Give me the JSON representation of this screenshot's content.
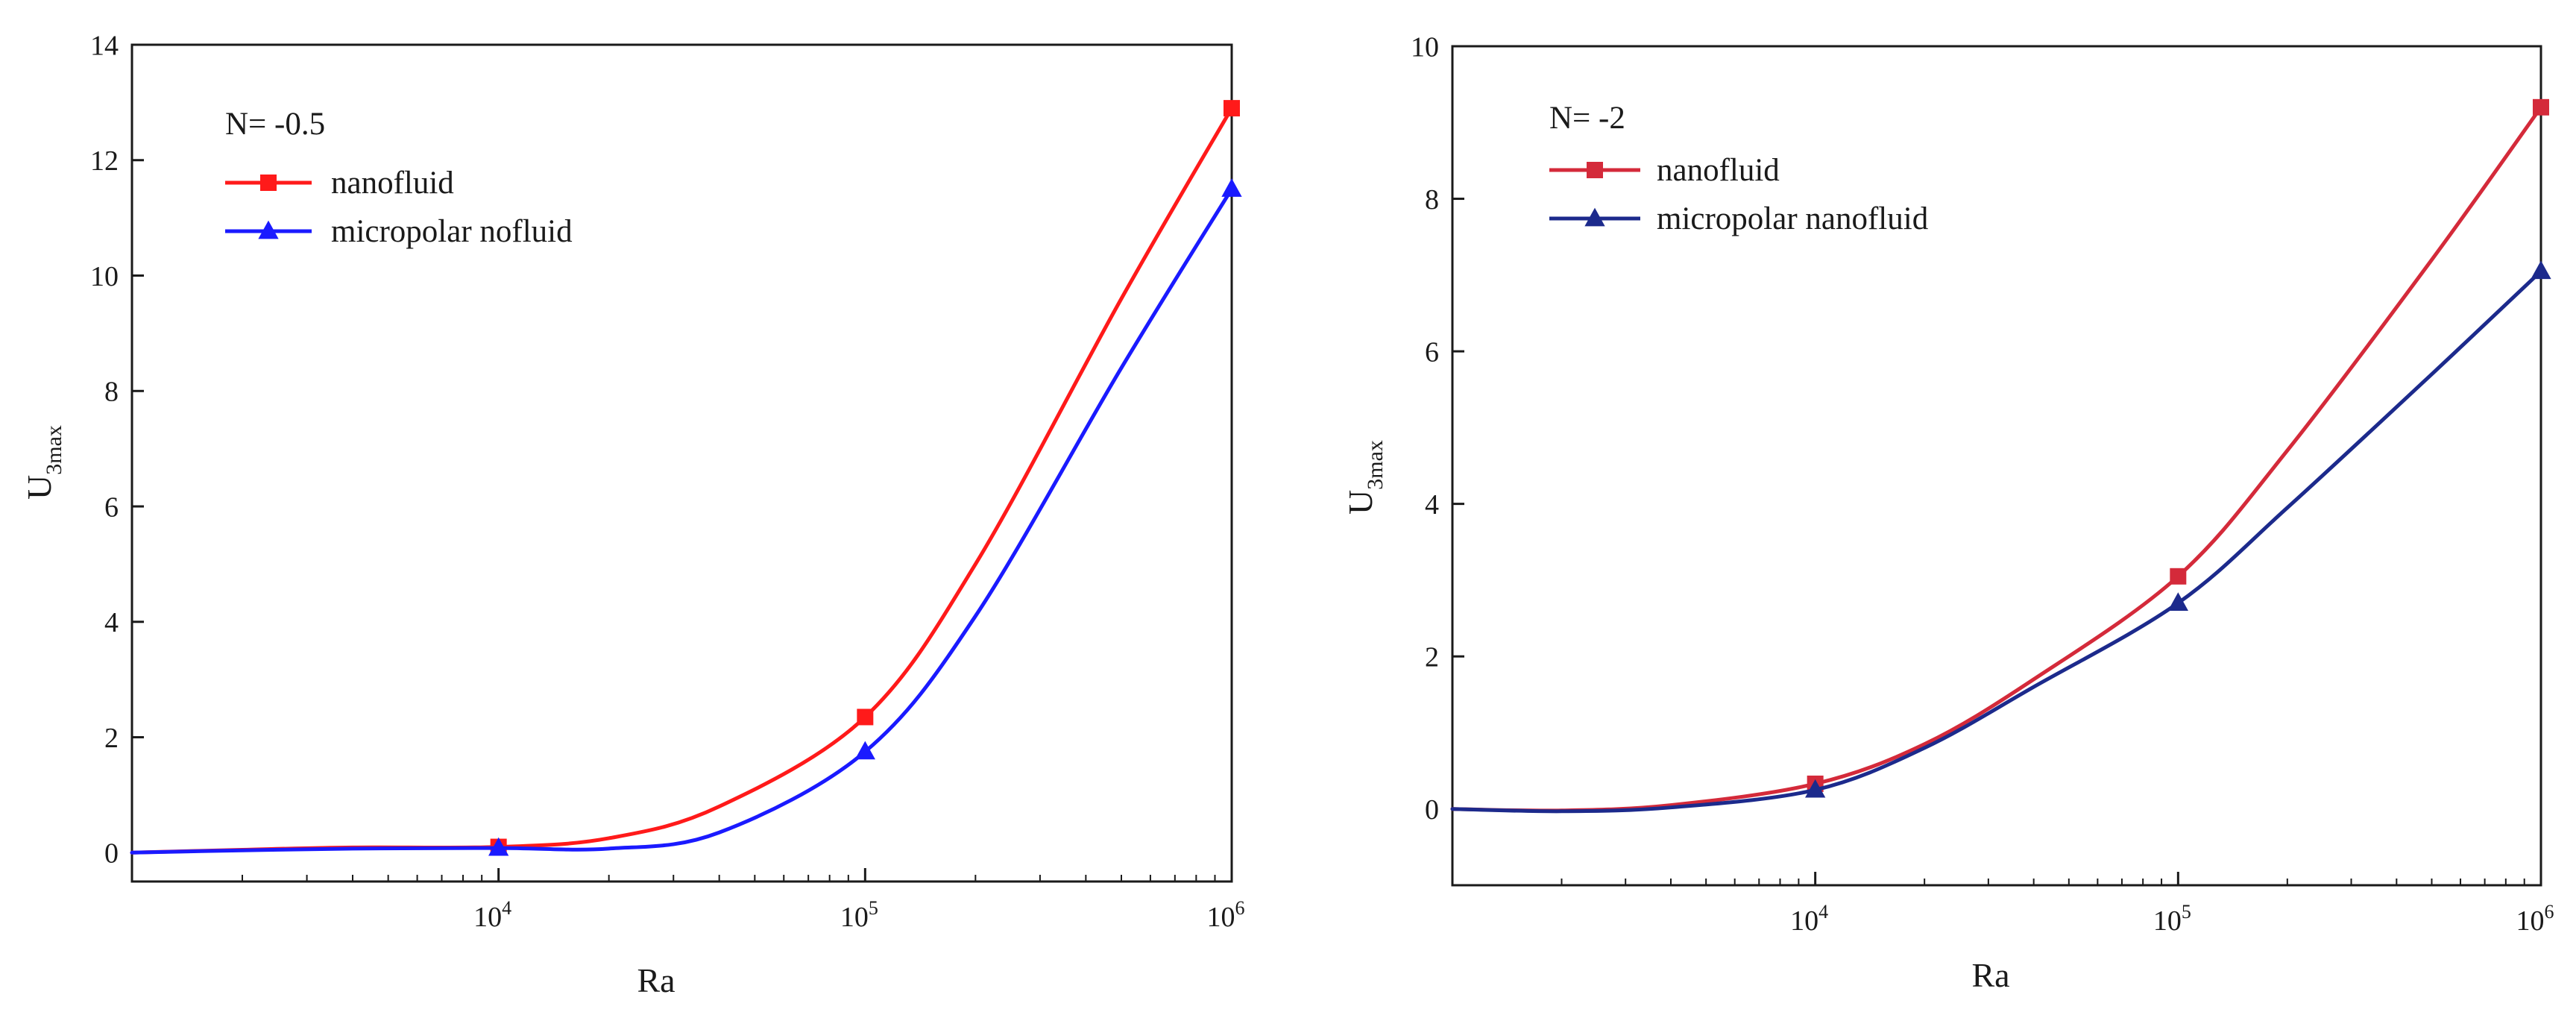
{
  "chart_data": [
    {
      "type": "line",
      "annotation": "N= -0.5",
      "xlabel": "Ra",
      "ylabel": "U",
      "ylabel_sub": "3max",
      "xscale": "log",
      "xlim": [
        1000,
        1000000
      ],
      "ylim": [
        -0.5,
        14
      ],
      "yticks": [
        0,
        2,
        4,
        6,
        8,
        10,
        12,
        14
      ],
      "xticks": [
        {
          "base": "10",
          "exp": "4",
          "value": 10000
        },
        {
          "base": "10",
          "exp": "5",
          "value": 100000
        },
        {
          "base": "10",
          "exp": "6",
          "value": 1000000
        }
      ],
      "series": [
        {
          "name": "nanofluid",
          "color": "#ff1a1a",
          "marker": "square",
          "x": [
            1000,
            2000,
            4000,
            10000,
            20000,
            40000,
            100000,
            200000,
            500000,
            1000000
          ],
          "y": [
            0.0,
            0.05,
            0.09,
            0.1,
            0.25,
            0.8,
            2.35,
            5.0,
            9.6,
            12.9
          ],
          "marker_x": [
            10000,
            100000,
            1000000
          ],
          "marker_y": [
            0.1,
            2.35,
            12.9
          ]
        },
        {
          "name": "micropolar nofluid",
          "color": "#1a1aff",
          "marker": "triangle",
          "x": [
            1000,
            2000,
            4000,
            10000,
            20000,
            40000,
            100000,
            200000,
            500000,
            1000000
          ],
          "y": [
            0.0,
            0.04,
            0.07,
            0.08,
            0.07,
            0.35,
            1.75,
            4.1,
            8.4,
            11.5
          ],
          "marker_x": [
            10000,
            100000,
            1000000
          ],
          "marker_y": [
            0.08,
            1.75,
            11.5
          ]
        }
      ]
    },
    {
      "type": "line",
      "annotation": "N= -2",
      "xlabel": "Ra",
      "ylabel": "U",
      "ylabel_sub": "3max",
      "xscale": "log",
      "xlim": [
        1000,
        1000000
      ],
      "ylim": [
        -1,
        10
      ],
      "yticks": [
        0,
        2,
        4,
        6,
        8,
        10
      ],
      "xticks": [
        {
          "base": "10",
          "exp": "4",
          "value": 10000
        },
        {
          "base": "10",
          "exp": "5",
          "value": 100000
        },
        {
          "base": "10",
          "exp": "6",
          "value": 1000000
        }
      ],
      "series": [
        {
          "name": "nanofluid",
          "color": "#d42a3a",
          "marker": "square",
          "x": [
            1000,
            2000,
            4000,
            10000,
            20000,
            40000,
            100000,
            200000,
            500000,
            1000000
          ],
          "y": [
            0.0,
            -0.02,
            0.05,
            0.33,
            0.85,
            1.7,
            3.05,
            4.7,
            7.2,
            9.2
          ],
          "marker_x": [
            10000,
            100000,
            1000000
          ],
          "marker_y": [
            0.33,
            3.05,
            9.2
          ]
        },
        {
          "name": "micropolar nanofluid",
          "color": "#1c2a8c",
          "marker": "triangle",
          "x": [
            1000,
            2000,
            4000,
            10000,
            20000,
            40000,
            100000,
            200000,
            500000,
            1000000
          ],
          "y": [
            0.0,
            -0.03,
            0.02,
            0.25,
            0.8,
            1.6,
            2.7,
            3.95,
            5.7,
            7.05
          ],
          "marker_x": [
            10000,
            100000,
            1000000
          ],
          "marker_y": [
            0.25,
            2.7,
            7.05
          ]
        }
      ]
    }
  ]
}
